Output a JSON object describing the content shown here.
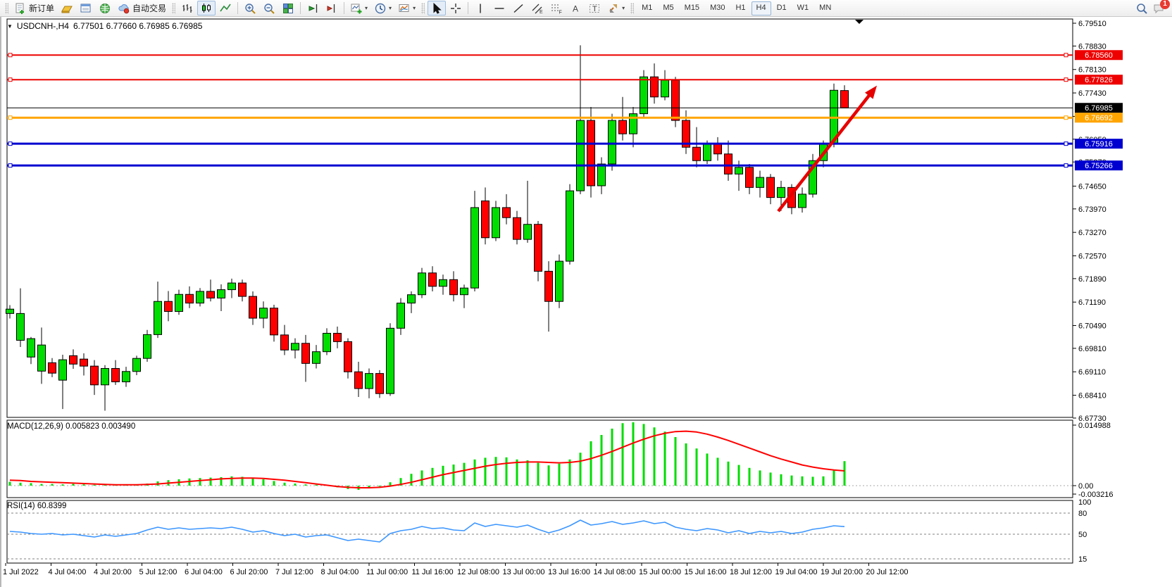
{
  "toolbar": {
    "new_order_label": "新订单",
    "auto_trading_label": "自动交易",
    "timeframes": [
      "M1",
      "M5",
      "M15",
      "M30",
      "H1",
      "H4",
      "D1",
      "W1",
      "MN"
    ],
    "active_timeframe": "H4",
    "chat_badge_count": "1"
  },
  "chart": {
    "title_symbol": "USDCNH-,H4",
    "title_ohlc": "6.77501 6.77660 6.76985 6.76985",
    "macd_label": "MACD(12,26,9) 0.005823 0.003490",
    "rsi_label": "RSI(14) 60.8399"
  },
  "chart_data": {
    "type": "candlestick",
    "symbol": "USDCNH-",
    "timeframe": "H4",
    "title_ohlc": {
      "open": "6.77501",
      "high": "6.77660",
      "low": "6.76985",
      "close": "6.76985"
    },
    "current_price": "6.76985",
    "price_axis_ticks": [
      "6.79510",
      "6.78830",
      "6.78130",
      "6.77430",
      "6.76730",
      "6.76050",
      "6.75370",
      "6.74650",
      "6.73970",
      "6.73270",
      "6.72570",
      "6.71890",
      "6.71190",
      "6.70490",
      "6.69810",
      "6.69110",
      "6.68410",
      "6.67730"
    ],
    "time_axis_labels": [
      "1 Jul 2022",
      "4 Jul 04:00",
      "4 Jul 20:00",
      "5 Jul 12:00",
      "6 Jul 04:00",
      "6 Jul 20:00",
      "7 Jul 12:00",
      "8 Jul 04:00",
      "11 Jul 00:00",
      "11 Jul 16:00",
      "12 Jul 08:00",
      "13 Jul 00:00",
      "13 Jul 16:00",
      "14 Jul 08:00",
      "15 Jul 00:00",
      "15 Jul 16:00",
      "18 Jul 12:00",
      "19 Jul 04:00",
      "19 Jul 20:00",
      "20 Jul 12:00"
    ],
    "levels": [
      {
        "price": "6.78560",
        "color_key": "red",
        "thickness": 2,
        "role": "resistance"
      },
      {
        "price": "6.77826",
        "color_key": "red",
        "thickness": 2,
        "role": "resistance"
      },
      {
        "price": "6.76985",
        "color_key": "black",
        "thickness": 1,
        "role": "current-price"
      },
      {
        "price": "6.76692",
        "color_key": "orange",
        "thickness": 3,
        "role": "level"
      },
      {
        "price": "6.75916",
        "color_key": "blue",
        "thickness": 3,
        "role": "support"
      },
      {
        "price": "6.75266",
        "color_key": "blue",
        "thickness": 3,
        "role": "support"
      }
    ],
    "colors": {
      "bull": "#00DD00",
      "bear": "#FF0000",
      "candle_outline": "#000000",
      "macd_histogram": "#00DD00",
      "macd_signal": "#FF0000",
      "rsi_line": "#3C96FF",
      "red": "#EE0000",
      "orange": "#FFA500",
      "blue": "#0000D0",
      "black": "#000000",
      "trend_arrow": "#E60000"
    },
    "ohlc": [
      [
        6.7085,
        6.711,
        6.707,
        6.7098
      ],
      [
        6.7005,
        6.716,
        6.6985,
        6.7085
      ],
      [
        6.6955,
        6.7015,
        6.6934,
        6.701
      ],
      [
        6.6913,
        6.7043,
        6.6875,
        6.6991
      ],
      [
        6.6938,
        6.6952,
        6.6895,
        6.6907
      ],
      [
        6.6886,
        6.6962,
        6.68,
        6.6947
      ],
      [
        6.6959,
        6.6978,
        6.692,
        6.6934
      ],
      [
        6.6949,
        6.6966,
        6.69,
        6.6928
      ],
      [
        6.6928,
        6.6946,
        6.6842,
        6.6872
      ],
      [
        6.6872,
        6.6931,
        6.6795,
        6.6921
      ],
      [
        6.6921,
        6.6946,
        6.6872,
        6.6881
      ],
      [
        6.6881,
        6.6926,
        6.6866,
        6.6912
      ],
      [
        6.6912,
        6.6959,
        6.6901,
        6.6951
      ],
      [
        6.6951,
        6.7036,
        6.6941,
        6.7022
      ],
      [
        6.7022,
        6.718,
        6.7012,
        6.7121
      ],
      [
        6.7121,
        6.7152,
        6.7062,
        6.7091
      ],
      [
        6.7091,
        6.7156,
        6.7081,
        6.7142
      ],
      [
        6.7142,
        6.7166,
        6.7101,
        6.7116
      ],
      [
        6.7116,
        6.7161,
        6.7106,
        6.7151
      ],
      [
        6.7151,
        6.7186,
        6.7121,
        6.7131
      ],
      [
        6.7131,
        6.7172,
        6.7092,
        6.7156
      ],
      [
        6.7156,
        6.7189,
        6.7131,
        6.7176
      ],
      [
        6.7176,
        6.7186,
        6.7121,
        6.7136
      ],
      [
        6.7136,
        6.7151,
        6.7051,
        6.7071
      ],
      [
        6.7071,
        6.7121,
        6.7041,
        6.7101
      ],
      [
        6.7101,
        6.7111,
        6.7001,
        6.7021
      ],
      [
        6.7021,
        6.7051,
        6.6961,
        6.6976
      ],
      [
        6.6976,
        6.7011,
        6.6951,
        6.6996
      ],
      [
        6.6996,
        6.7021,
        6.6881,
        6.6936
      ],
      [
        6.6936,
        6.6991,
        6.6921,
        6.6971
      ],
      [
        6.6971,
        6.7041,
        6.6961,
        6.7026
      ],
      [
        6.7026,
        6.7046,
        6.6981,
        6.7001
      ],
      [
        6.7001,
        6.7011,
        6.6891,
        6.6911
      ],
      [
        6.6911,
        6.6941,
        6.6836,
        6.6861
      ],
      [
        6.6861,
        6.6921,
        6.6832,
        6.6906
      ],
      [
        6.6906,
        6.6916,
        6.6833,
        6.6846
      ],
      [
        6.6846,
        6.7056,
        6.6839,
        6.7041
      ],
      [
        6.7041,
        6.7131,
        6.7021,
        6.7116
      ],
      [
        6.7116,
        6.7151,
        6.7086,
        6.7141
      ],
      [
        6.7141,
        6.7221,
        6.7131,
        6.7206
      ],
      [
        6.7206,
        6.7226,
        6.7151,
        6.7166
      ],
      [
        6.7166,
        6.7201,
        6.7141,
        6.7186
      ],
      [
        6.7186,
        6.7211,
        6.7121,
        6.7141
      ],
      [
        6.7141,
        6.7171,
        6.7101,
        6.7161
      ],
      [
        6.7161,
        6.7451,
        6.7151,
        6.7401
      ],
      [
        6.7421,
        6.7461,
        6.7291,
        6.7311
      ],
      [
        6.7311,
        6.7421,
        6.7301,
        6.7401
      ],
      [
        6.7401,
        6.7441,
        6.7351,
        6.7371
      ],
      [
        6.7371,
        6.7391,
        6.7291,
        6.7306
      ],
      [
        6.7306,
        6.7481,
        6.7296,
        6.7351
      ],
      [
        6.7351,
        6.7361,
        6.7181,
        6.7211
      ],
      [
        6.7211,
        6.7241,
        6.7031,
        6.7121
      ],
      [
        6.7121,
        6.7261,
        6.7101,
        6.7241
      ],
      [
        6.7241,
        6.7471,
        6.7231,
        6.7451
      ],
      [
        6.7451,
        6.7885,
        6.7441,
        6.7661
      ],
      [
        6.7661,
        6.7701,
        6.7431,
        6.7466
      ],
      [
        6.7466,
        6.7551,
        6.7441,
        6.7531
      ],
      [
        6.7531,
        6.7681,
        6.7511,
        6.7661
      ],
      [
        6.7661,
        6.7731,
        6.7601,
        6.7621
      ],
      [
        6.7621,
        6.7701,
        6.7581,
        6.7681
      ],
      [
        6.7681,
        6.7811,
        6.7671,
        6.7791
      ],
      [
        6.7791,
        6.7831,
        6.7711,
        6.7731
      ],
      [
        6.7731,
        6.7811,
        6.7721,
        6.7781
      ],
      [
        6.7781,
        6.7791,
        6.7641,
        6.7661
      ],
      [
        6.7661,
        6.7691,
        6.7561,
        6.7581
      ],
      [
        6.7581,
        6.7641,
        6.7521,
        6.7541
      ],
      [
        6.7541,
        6.7601,
        6.7531,
        6.7591
      ],
      [
        6.7591,
        6.7611,
        6.7541,
        6.7561
      ],
      [
        6.7561,
        6.7601,
        6.7481,
        6.7501
      ],
      [
        6.7501,
        6.7541,
        6.7451,
        6.7521
      ],
      [
        6.7521,
        6.7531,
        6.7441,
        6.7461
      ],
      [
        6.7461,
        6.7511,
        6.7431,
        6.7491
      ],
      [
        6.7491,
        6.7501,
        6.7411,
        6.7431
      ],
      [
        6.7431,
        6.7481,
        6.7391,
        6.7461
      ],
      [
        6.7461,
        6.7471,
        6.7381,
        6.7401
      ],
      [
        6.7401,
        6.7461,
        6.7386,
        6.7441
      ],
      [
        6.7441,
        6.7561,
        6.7431,
        6.7541
      ],
      [
        6.7541,
        6.7601,
        6.7521,
        6.7591
      ],
      [
        6.7591,
        6.7771,
        6.7581,
        6.7751
      ],
      [
        6.77501,
        6.7766,
        6.76985,
        6.76985
      ]
    ],
    "indicators": {
      "macd": {
        "name": "MACD",
        "params": "12,26,9",
        "value_main": "0.005823",
        "value_signal": "0.003490",
        "axis_labels": [
          "0.014988",
          "0.00",
          "-0.003216"
        ],
        "histogram": [
          0.0009,
          0.0007,
          0.0006,
          0.0004,
          0.0004,
          0.0003,
          0.0004,
          0.0003,
          0.0002,
          0.0002,
          0.0001,
          0.0002,
          0.0003,
          0.0005,
          0.001,
          0.0013,
          0.0015,
          0.0017,
          0.0018,
          0.0019,
          0.002,
          0.0022,
          0.0021,
          0.0019,
          0.0015,
          0.0011,
          0.0007,
          0.0005,
          0.0003,
          0.0002,
          0.0001,
          -0.0004,
          -0.0008,
          -0.001,
          -0.0006,
          -0.0002,
          0.0008,
          0.0018,
          0.0028,
          0.0036,
          0.0042,
          0.0047,
          0.005,
          0.0054,
          0.0062,
          0.0066,
          0.0068,
          0.0067,
          0.0062,
          0.006,
          0.0054,
          0.0048,
          0.0052,
          0.0062,
          0.0078,
          0.0105,
          0.012,
          0.0135,
          0.0148,
          0.015,
          0.0146,
          0.0138,
          0.0128,
          0.0115,
          0.01,
          0.0088,
          0.0076,
          0.0066,
          0.0057,
          0.0049,
          0.0042,
          0.0036,
          0.0031,
          0.0027,
          0.0024,
          0.0022,
          0.0021,
          0.0022,
          0.0036,
          0.0058
        ],
        "signal": [
          0.0013,
          0.0012,
          0.001,
          0.0009,
          0.0008,
          0.0007,
          0.0006,
          0.0005,
          0.0004,
          0.0003,
          0.0002,
          0.0002,
          0.0002,
          0.0003,
          0.0004,
          0.0006,
          0.0008,
          0.001,
          0.0012,
          0.0014,
          0.0016,
          0.0017,
          0.0018,
          0.0018,
          0.0017,
          0.0015,
          0.0013,
          0.001,
          0.0007,
          0.0004,
          0.0001,
          -0.0002,
          -0.0004,
          -0.0005,
          -0.0005,
          -0.0004,
          -0.0001,
          0.0003,
          0.0008,
          0.0014,
          0.002,
          0.0026,
          0.0031,
          0.0036,
          0.0041,
          0.0046,
          0.005,
          0.0053,
          0.0055,
          0.0056,
          0.0056,
          0.0055,
          0.0054,
          0.0055,
          0.0058,
          0.0064,
          0.0072,
          0.0081,
          0.0091,
          0.0101,
          0.011,
          0.0118,
          0.0124,
          0.0128,
          0.0129,
          0.0127,
          0.0122,
          0.0115,
          0.0107,
          0.0098,
          0.0089,
          0.008,
          0.0071,
          0.0063,
          0.0056,
          0.0049,
          0.0044,
          0.004,
          0.0037,
          0.0035
        ]
      },
      "rsi": {
        "name": "RSI",
        "params": "14",
        "value": "60.8399",
        "levels": [
          "100",
          "80",
          "50",
          "15"
        ],
        "series": [
          54,
          53,
          51,
          50,
          51,
          49,
          50,
          48,
          46,
          49,
          47,
          49,
          51,
          56,
          60,
          57,
          59,
          57,
          58,
          59,
          58,
          60,
          57,
          53,
          55,
          51,
          48,
          50,
          46,
          48,
          49,
          45,
          41,
          43,
          41,
          39,
          51,
          55,
          57,
          61,
          58,
          59,
          56,
          55,
          66,
          61,
          64,
          62,
          60,
          63,
          57,
          52,
          56,
          62,
          70,
          63,
          65,
          68,
          64,
          66,
          69,
          65,
          67,
          60,
          57,
          55,
          58,
          56,
          52,
          55,
          51,
          54,
          52,
          54,
          51,
          53,
          57,
          59,
          62,
          60.8
        ]
      }
    },
    "trend_arrow": {
      "from_price": 6.739,
      "to_price": 6.7765,
      "direction": "up"
    }
  }
}
